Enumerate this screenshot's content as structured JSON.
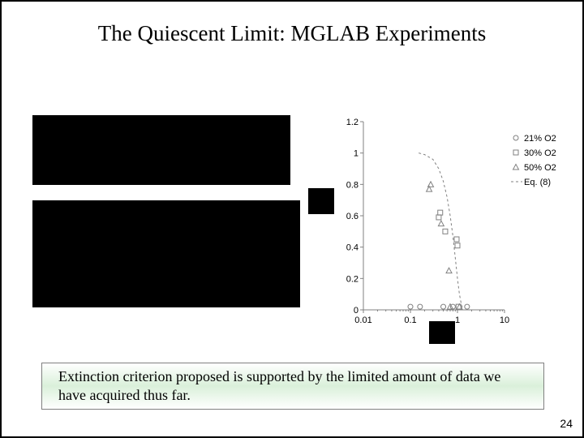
{
  "title": "The Quiescent Limit: MGLAB Experiments",
  "conclusion": "Extinction criterion proposed is supported by the limited amount of data we have acquired thus far.",
  "page_number": "24",
  "chart": {
    "type": "scatter",
    "yticks": [
      0,
      0.2,
      0.4,
      0.6,
      0.8,
      1,
      1.2
    ],
    "xticks": [
      0.01,
      0.1,
      1,
      10
    ],
    "xscale": "log",
    "ylim": [
      0,
      1.2
    ],
    "xlim": [
      0.01,
      10
    ],
    "legend": [
      {
        "marker": "circle",
        "label": "21% O2"
      },
      {
        "marker": "square",
        "label": "30% O2"
      },
      {
        "marker": "triangle",
        "label": "50% O2"
      },
      {
        "marker": "dashline",
        "label": "Eq. (8)"
      }
    ],
    "series": {
      "circle": [
        [
          0.1,
          0.02
        ],
        [
          0.16,
          0.02
        ],
        [
          0.5,
          0.02
        ],
        [
          0.8,
          0.02
        ],
        [
          1.6,
          0.02
        ]
      ],
      "square": [
        [
          0.4,
          0.59
        ],
        [
          0.43,
          0.62
        ],
        [
          0.55,
          0.5
        ],
        [
          0.96,
          0.45
        ],
        [
          1.0,
          0.41
        ],
        [
          1.05,
          0.02
        ]
      ],
      "triangle": [
        [
          0.25,
          0.77
        ],
        [
          0.27,
          0.8
        ],
        [
          0.45,
          0.55
        ],
        [
          0.66,
          0.25
        ],
        [
          0.7,
          0.02
        ],
        [
          1.1,
          0.02
        ]
      ],
      "eq8": [
        [
          0.15,
          1.0
        ],
        [
          0.2,
          0.99
        ],
        [
          0.3,
          0.96
        ],
        [
          0.4,
          0.9
        ],
        [
          0.5,
          0.82
        ],
        [
          0.6,
          0.72
        ],
        [
          0.7,
          0.6
        ],
        [
          0.8,
          0.47
        ],
        [
          0.9,
          0.33
        ],
        [
          1.0,
          0.2
        ],
        [
          1.1,
          0.1
        ],
        [
          1.2,
          0.04
        ],
        [
          1.3,
          0.0
        ]
      ]
    },
    "colors": {
      "axis": "#808080",
      "marker_stroke": "#808080",
      "dash": "#808080",
      "bg": "#ffffff"
    },
    "fontsize": 11
  }
}
